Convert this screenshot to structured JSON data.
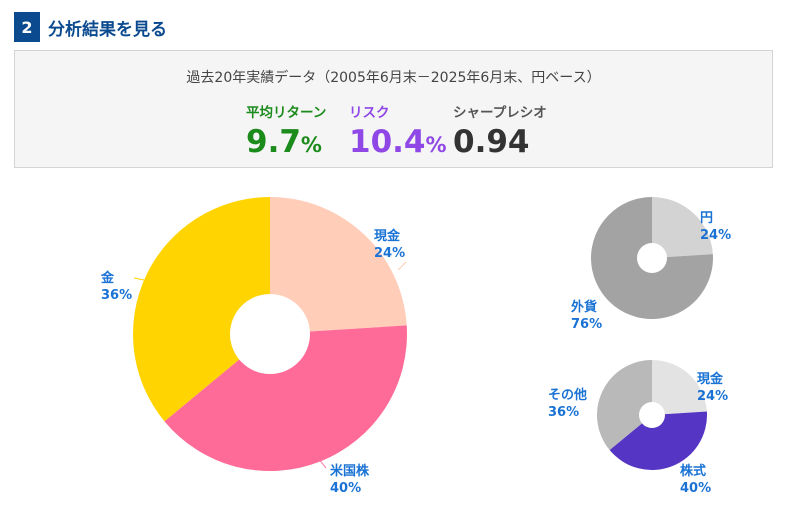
{
  "section": {
    "number": "2",
    "title": "分析結果を見る"
  },
  "summary": {
    "caption": "過去20年実績データ（2005年6月末－2025年6月末、円ベース）",
    "metrics": [
      {
        "label": "平均リターン",
        "value": "9.7",
        "unit": "%"
      },
      {
        "label": "リスク",
        "value": "10.4",
        "unit": "%"
      },
      {
        "label": "シャープレシオ",
        "value": "0.94",
        "unit": ""
      }
    ]
  },
  "chart_data": [
    {
      "type": "pie",
      "title": "",
      "slices": [
        {
          "label": "現金",
          "value": 24,
          "display": "24%",
          "color": "#ffcdb8"
        },
        {
          "label": "米国株",
          "value": 40,
          "display": "40%",
          "color": "#ff6b98"
        },
        {
          "label": "金",
          "value": 36,
          "display": "36%",
          "color": "#ffd400"
        }
      ]
    },
    {
      "type": "pie",
      "title": "",
      "slices": [
        {
          "label": "円",
          "value": 24,
          "display": "24%",
          "color": "#d3d3d3"
        },
        {
          "label": "外貨",
          "value": 76,
          "display": "76%",
          "color": "#a3a3a3"
        }
      ]
    },
    {
      "type": "pie",
      "title": "",
      "slices": [
        {
          "label": "現金",
          "value": 24,
          "display": "24%",
          "color": "#e3e3e3"
        },
        {
          "label": "株式",
          "value": 40,
          "display": "40%",
          "color": "#5535c4"
        },
        {
          "label": "その他",
          "value": 36,
          "display": "36%",
          "color": "#b9b9b9"
        }
      ]
    }
  ]
}
